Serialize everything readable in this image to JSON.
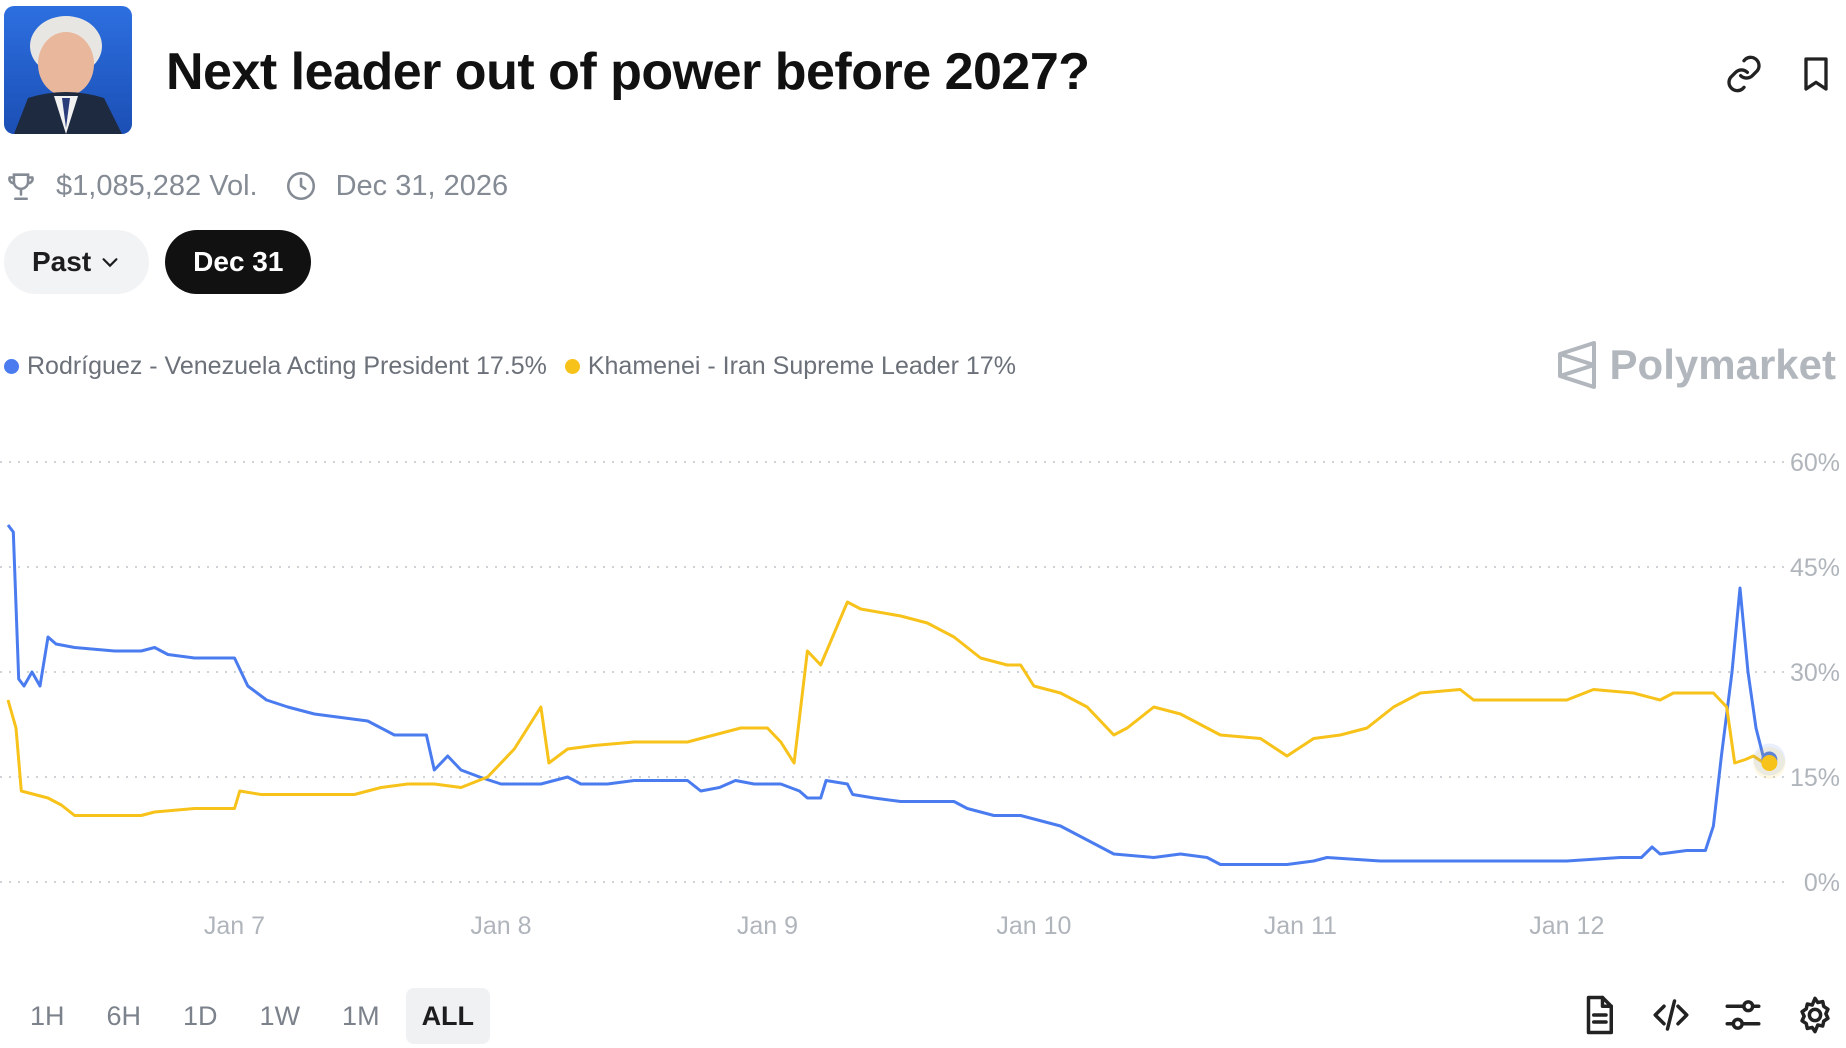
{
  "header": {
    "title": "Next leader out of power before 2027?",
    "icons": [
      "link-icon",
      "bookmark-icon"
    ]
  },
  "meta": {
    "volume": "$1,085,282 Vol.",
    "end_date": "Dec 31, 2026",
    "icons": [
      "trophy-icon",
      "clock-icon"
    ]
  },
  "filters": {
    "past_label": "Past",
    "selected_label": "Dec 31"
  },
  "brand": {
    "name": "Polymarket"
  },
  "colors": {
    "blue": "#4a7cf0",
    "yellow": "#f7c21a",
    "grid": "#cfd3d8",
    "tick": "#b0b5bc"
  },
  "chart_data": {
    "type": "line",
    "x_ticks": [
      "Jan 7",
      "Jan 8",
      "Jan 9",
      "Jan 10",
      "Jan 11",
      "Jan 12"
    ],
    "y_ticks": [
      "60%",
      "45%",
      "30%",
      "15%",
      "0%"
    ],
    "ylim": [
      0,
      60
    ],
    "xlim": [
      6.15,
      12.8
    ],
    "grid": true,
    "legend_placement": "top-left",
    "series": [
      {
        "name": "Rodríguez - Venezuela Acting President",
        "legend_value": "17.5%",
        "color": "#4a7cf0",
        "points": [
          [
            6.15,
            51
          ],
          [
            6.17,
            50
          ],
          [
            6.19,
            29
          ],
          [
            6.21,
            28
          ],
          [
            6.24,
            30
          ],
          [
            6.27,
            28
          ],
          [
            6.3,
            35
          ],
          [
            6.33,
            34
          ],
          [
            6.4,
            33.5
          ],
          [
            6.55,
            33
          ],
          [
            6.65,
            33
          ],
          [
            6.7,
            33.5
          ],
          [
            6.75,
            32.5
          ],
          [
            6.85,
            32
          ],
          [
            7.0,
            32
          ],
          [
            7.05,
            28
          ],
          [
            7.12,
            26
          ],
          [
            7.2,
            25
          ],
          [
            7.3,
            24
          ],
          [
            7.5,
            23
          ],
          [
            7.6,
            21
          ],
          [
            7.72,
            21
          ],
          [
            7.75,
            16
          ],
          [
            7.8,
            18
          ],
          [
            7.85,
            16
          ],
          [
            7.92,
            15
          ],
          [
            8.0,
            14
          ],
          [
            8.15,
            14
          ],
          [
            8.25,
            15
          ],
          [
            8.3,
            14
          ],
          [
            8.4,
            14
          ],
          [
            8.5,
            14.5
          ],
          [
            8.7,
            14.5
          ],
          [
            8.75,
            13
          ],
          [
            8.82,
            13.5
          ],
          [
            8.88,
            14.5
          ],
          [
            8.95,
            14
          ],
          [
            9.05,
            14
          ],
          [
            9.12,
            13
          ],
          [
            9.15,
            12
          ],
          [
            9.2,
            12
          ],
          [
            9.22,
            14.5
          ],
          [
            9.3,
            14
          ],
          [
            9.32,
            12.5
          ],
          [
            9.4,
            12
          ],
          [
            9.5,
            11.5
          ],
          [
            9.7,
            11.5
          ],
          [
            9.75,
            10.5
          ],
          [
            9.85,
            9.5
          ],
          [
            9.95,
            9.5
          ],
          [
            10.0,
            9
          ],
          [
            10.1,
            8
          ],
          [
            10.2,
            6
          ],
          [
            10.3,
            4
          ],
          [
            10.45,
            3.5
          ],
          [
            10.55,
            4
          ],
          [
            10.65,
            3.5
          ],
          [
            10.7,
            2.5
          ],
          [
            10.8,
            2.5
          ],
          [
            10.95,
            2.5
          ],
          [
            11.05,
            3
          ],
          [
            11.1,
            3.5
          ],
          [
            11.3,
            3
          ],
          [
            11.6,
            3
          ],
          [
            12.0,
            3
          ],
          [
            12.2,
            3.5
          ],
          [
            12.28,
            3.5
          ],
          [
            12.32,
            5
          ],
          [
            12.35,
            4
          ],
          [
            12.45,
            4.5
          ],
          [
            12.52,
            4.5
          ],
          [
            12.55,
            8
          ],
          [
            12.58,
            18
          ],
          [
            12.62,
            30
          ],
          [
            12.65,
            42
          ],
          [
            12.68,
            30
          ],
          [
            12.71,
            22
          ],
          [
            12.74,
            17.5
          ],
          [
            12.76,
            17.5
          ]
        ]
      },
      {
        "name": "Khamenei - Iran Supreme Leader",
        "legend_value": "17%",
        "color": "#f7c21a",
        "points": [
          [
            6.15,
            26
          ],
          [
            6.18,
            22
          ],
          [
            6.2,
            13
          ],
          [
            6.3,
            12
          ],
          [
            6.35,
            11
          ],
          [
            6.4,
            9.5
          ],
          [
            6.5,
            9.5
          ],
          [
            6.65,
            9.5
          ],
          [
            6.7,
            10
          ],
          [
            6.85,
            10.5
          ],
          [
            7.0,
            10.5
          ],
          [
            7.02,
            13
          ],
          [
            7.1,
            12.5
          ],
          [
            7.3,
            12.5
          ],
          [
            7.45,
            12.5
          ],
          [
            7.55,
            13.5
          ],
          [
            7.65,
            14
          ],
          [
            7.75,
            14
          ],
          [
            7.85,
            13.5
          ],
          [
            7.95,
            15
          ],
          [
            8.0,
            17
          ],
          [
            8.05,
            19
          ],
          [
            8.1,
            22
          ],
          [
            8.15,
            25
          ],
          [
            8.18,
            17
          ],
          [
            8.25,
            19
          ],
          [
            8.35,
            19.5
          ],
          [
            8.5,
            20
          ],
          [
            8.7,
            20
          ],
          [
            8.8,
            21
          ],
          [
            8.9,
            22
          ],
          [
            9.0,
            22
          ],
          [
            9.05,
            20
          ],
          [
            9.1,
            17
          ],
          [
            9.15,
            33
          ],
          [
            9.2,
            31
          ],
          [
            9.3,
            40
          ],
          [
            9.35,
            39
          ],
          [
            9.5,
            38
          ],
          [
            9.6,
            37
          ],
          [
            9.7,
            35
          ],
          [
            9.8,
            32
          ],
          [
            9.9,
            31
          ],
          [
            9.95,
            31
          ],
          [
            10.0,
            28
          ],
          [
            10.1,
            27
          ],
          [
            10.2,
            25
          ],
          [
            10.3,
            21
          ],
          [
            10.35,
            22
          ],
          [
            10.45,
            25
          ],
          [
            10.55,
            24
          ],
          [
            10.7,
            21
          ],
          [
            10.85,
            20.5
          ],
          [
            10.95,
            18
          ],
          [
            11.05,
            20.5
          ],
          [
            11.15,
            21
          ],
          [
            11.25,
            22
          ],
          [
            11.35,
            25
          ],
          [
            11.45,
            27
          ],
          [
            11.6,
            27.5
          ],
          [
            11.65,
            26
          ],
          [
            11.85,
            26
          ],
          [
            12.0,
            26
          ],
          [
            12.1,
            27.5
          ],
          [
            12.25,
            27
          ],
          [
            12.35,
            26
          ],
          [
            12.4,
            27
          ],
          [
            12.55,
            27
          ],
          [
            12.6,
            25
          ],
          [
            12.63,
            17
          ],
          [
            12.67,
            17.5
          ],
          [
            12.7,
            18
          ],
          [
            12.74,
            17
          ],
          [
            12.76,
            17
          ]
        ]
      }
    ]
  },
  "range_buttons": [
    "1H",
    "6H",
    "1D",
    "1W",
    "1M",
    "ALL"
  ],
  "active_range": "ALL",
  "tools": [
    "document-icon",
    "embed-code-icon",
    "sliders-icon",
    "settings-gear-icon"
  ]
}
